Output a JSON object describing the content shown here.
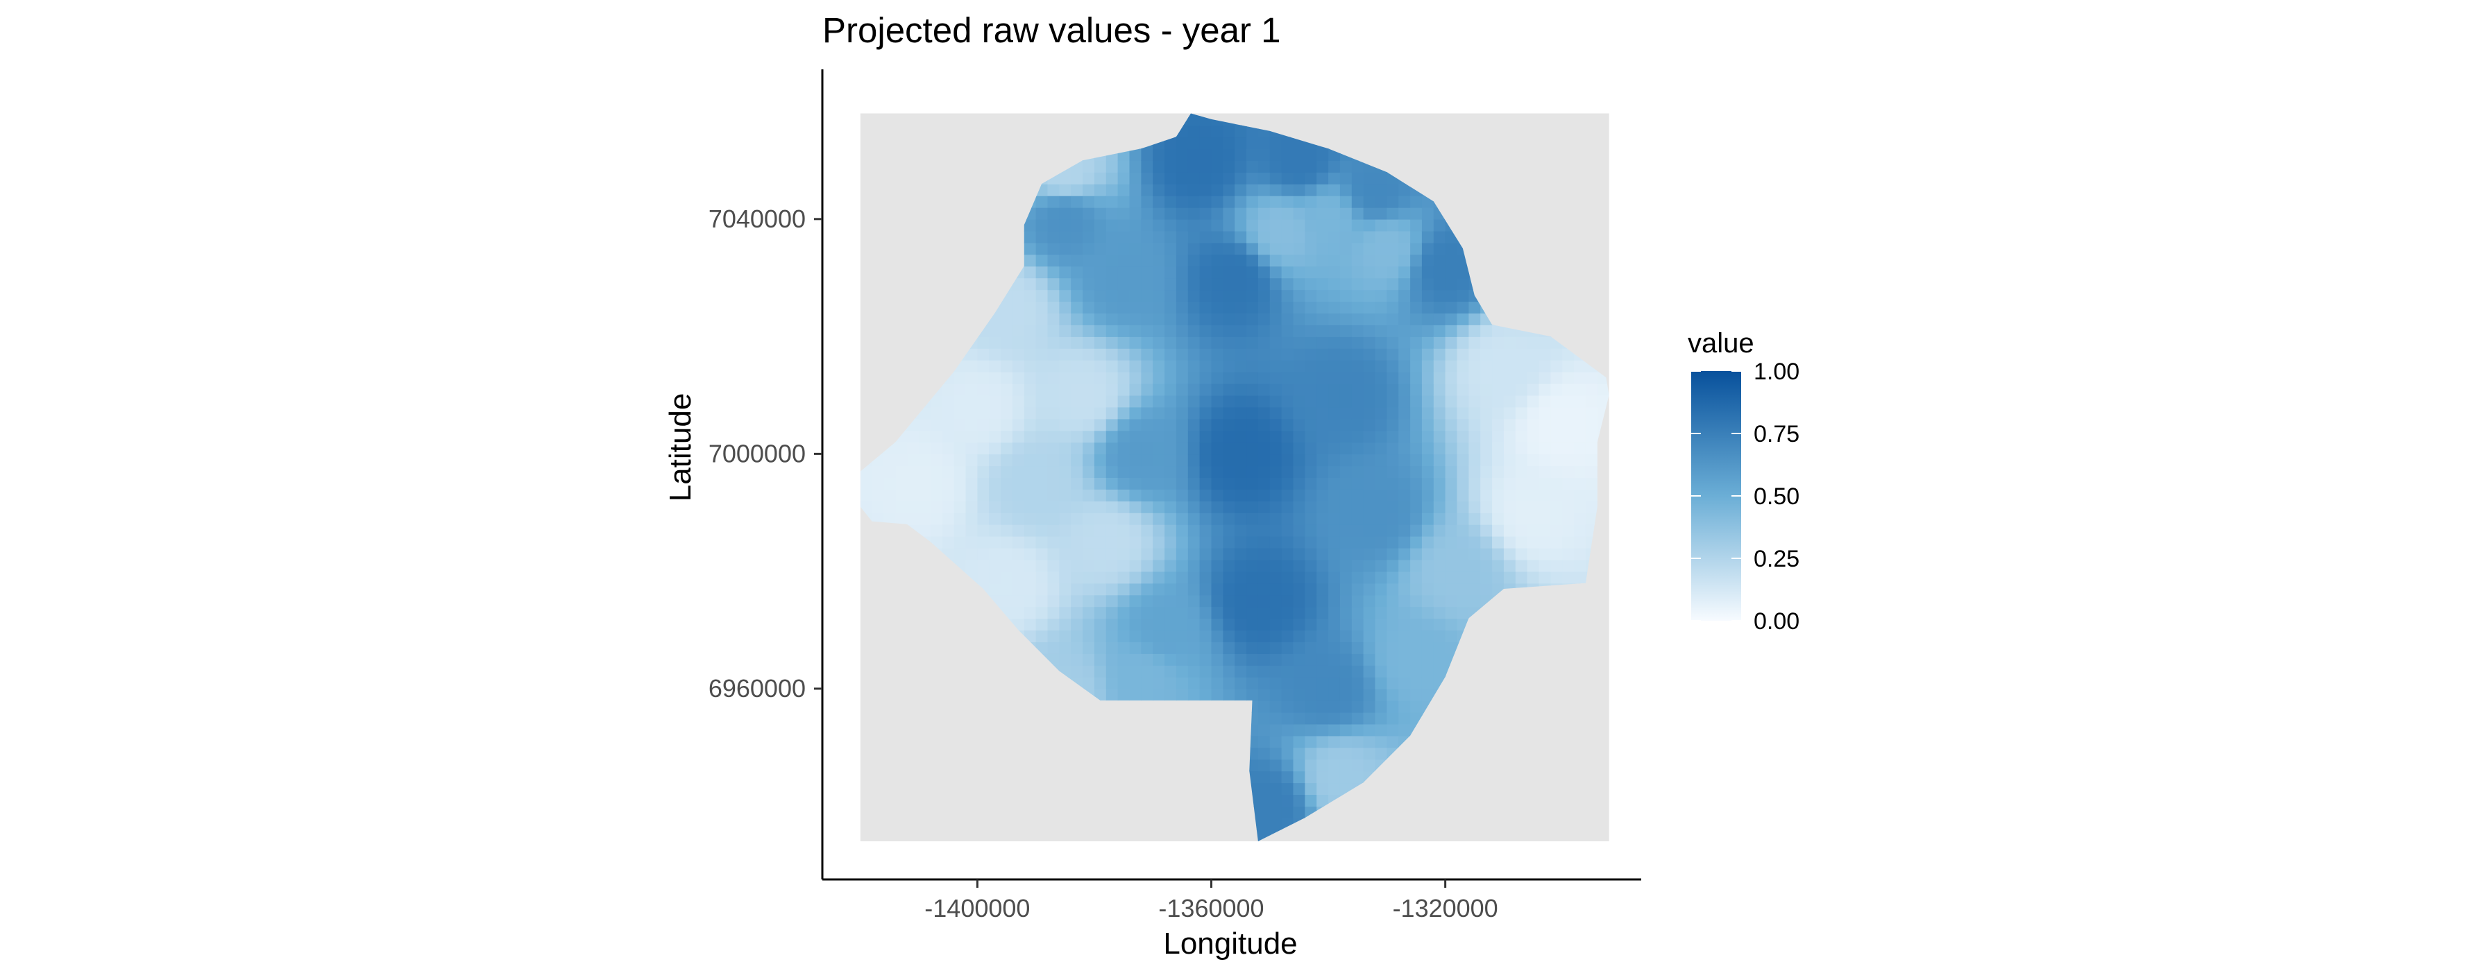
{
  "chart_data": {
    "type": "heatmap",
    "title": "Projected raw values - year 1",
    "xlabel": "Longitude",
    "ylabel": "Latitude",
    "x_ticks": [
      -1400000,
      -1360000,
      -1320000
    ],
    "x_tick_labels": [
      "-1400000",
      "-1360000",
      "-1320000"
    ],
    "y_ticks": [
      7040000,
      7000000,
      6960000
    ],
    "y_tick_labels": [
      "7040000",
      "7000000",
      "6960000"
    ],
    "xlim": [
      -1426500,
      -1286500
    ],
    "ylim": [
      6927500,
      7065500
    ],
    "panel_extent": {
      "x": [
        -1420000,
        -1292000
      ],
      "y": [
        6934000,
        7058000
      ]
    },
    "panel_background": "#e5e5e5",
    "grid": false,
    "legend": {
      "title": "value",
      "position": "right",
      "ticks": [
        0.0,
        0.25,
        0.5,
        0.75,
        1.0
      ],
      "tick_labels": [
        "0.00",
        "0.25",
        "0.50",
        "0.75",
        "1.00"
      ],
      "colors": {
        "low": "#f7fbff",
        "mid": "#6baed6",
        "high": "#08519c"
      }
    },
    "region_boundary": [
      [
        -1363500,
        7058000
      ],
      [
        -1360000,
        7057000
      ],
      [
        -1350000,
        7055000
      ],
      [
        -1340000,
        7052000
      ],
      [
        -1330000,
        7048000
      ],
      [
        -1322000,
        7043000
      ],
      [
        -1317000,
        7035000
      ],
      [
        -1315000,
        7027000
      ],
      [
        -1312000,
        7022000
      ],
      [
        -1302000,
        7020000
      ],
      [
        -1292500,
        7013000
      ],
      [
        -1292000,
        7010000
      ],
      [
        -1294000,
        7002000
      ],
      [
        -1294000,
        6991000
      ],
      [
        -1296000,
        6978000
      ],
      [
        -1310000,
        6977000
      ],
      [
        -1316000,
        6972000
      ],
      [
        -1320000,
        6962000
      ],
      [
        -1326000,
        6952000
      ],
      [
        -1334000,
        6944000
      ],
      [
        -1344000,
        6938000
      ],
      [
        -1352000,
        6934000
      ],
      [
        -1353500,
        6946000
      ],
      [
        -1353000,
        6958000
      ],
      [
        -1358000,
        6958000
      ],
      [
        -1368500,
        6958000
      ],
      [
        -1379000,
        6958000
      ],
      [
        -1386000,
        6963000
      ],
      [
        -1393000,
        6970000
      ],
      [
        -1399000,
        6977000
      ],
      [
        -1408000,
        6985000
      ],
      [
        -1412000,
        6988000
      ],
      [
        -1418000,
        6988500
      ],
      [
        -1420000,
        6991000
      ],
      [
        -1420000,
        6997000
      ],
      [
        -1414000,
        7002000
      ],
      [
        -1404000,
        7014000
      ],
      [
        -1397000,
        7024000
      ],
      [
        -1392000,
        7032000
      ],
      [
        -1392000,
        7039000
      ],
      [
        -1389000,
        7046000
      ],
      [
        -1382000,
        7050000
      ],
      [
        -1372000,
        7052000
      ],
      [
        -1366000,
        7054000
      ]
    ],
    "field_anchors": [
      {
        "x": -1355000,
        "y": 7000000,
        "value": 0.85
      },
      {
        "x": -1352000,
        "y": 6975000,
        "value": 0.82
      },
      {
        "x": -1356000,
        "y": 7030000,
        "value": 0.8
      },
      {
        "x": -1362000,
        "y": 7050000,
        "value": 0.82
      },
      {
        "x": -1345000,
        "y": 7050000,
        "value": 0.78
      },
      {
        "x": -1332000,
        "y": 7045000,
        "value": 0.7
      },
      {
        "x": -1320000,
        "y": 7032000,
        "value": 0.75
      },
      {
        "x": -1338000,
        "y": 7010000,
        "value": 0.72
      },
      {
        "x": -1332000,
        "y": 6990000,
        "value": 0.65
      },
      {
        "x": -1340000,
        "y": 6960000,
        "value": 0.7
      },
      {
        "x": -1338000,
        "y": 6945000,
        "value": 0.32
      },
      {
        "x": -1350000,
        "y": 6940000,
        "value": 0.75
      },
      {
        "x": -1300000,
        "y": 7005000,
        "value": 0.05
      },
      {
        "x": -1305000,
        "y": 6990000,
        "value": 0.08
      },
      {
        "x": -1310000,
        "y": 7015000,
        "value": 0.15
      },
      {
        "x": -1318000,
        "y": 6980000,
        "value": 0.35
      },
      {
        "x": -1325000,
        "y": 6965000,
        "value": 0.45
      },
      {
        "x": -1372000,
        "y": 7000000,
        "value": 0.6
      },
      {
        "x": -1368000,
        "y": 6970000,
        "value": 0.55
      },
      {
        "x": -1378000,
        "y": 6985000,
        "value": 0.2
      },
      {
        "x": -1382000,
        "y": 7010000,
        "value": 0.18
      },
      {
        "x": -1390000,
        "y": 6995000,
        "value": 0.25
      },
      {
        "x": -1395000,
        "y": 6978000,
        "value": 0.12
      },
      {
        "x": -1400000,
        "y": 7008000,
        "value": 0.1
      },
      {
        "x": -1410000,
        "y": 6995000,
        "value": 0.08
      },
      {
        "x": -1395000,
        "y": 7025000,
        "value": 0.2
      },
      {
        "x": -1385000,
        "y": 7040000,
        "value": 0.65
      },
      {
        "x": -1385000,
        "y": 7048000,
        "value": 0.25
      },
      {
        "x": -1375000,
        "y": 7030000,
        "value": 0.6
      },
      {
        "x": -1348000,
        "y": 7038000,
        "value": 0.4
      },
      {
        "x": -1340000,
        "y": 7040000,
        "value": 0.45
      },
      {
        "x": -1330000,
        "y": 7035000,
        "value": 0.42
      },
      {
        "x": -1385000,
        "y": 6960000,
        "value": 0.3
      },
      {
        "x": -1372000,
        "y": 6962000,
        "value": 0.45
      }
    ]
  }
}
